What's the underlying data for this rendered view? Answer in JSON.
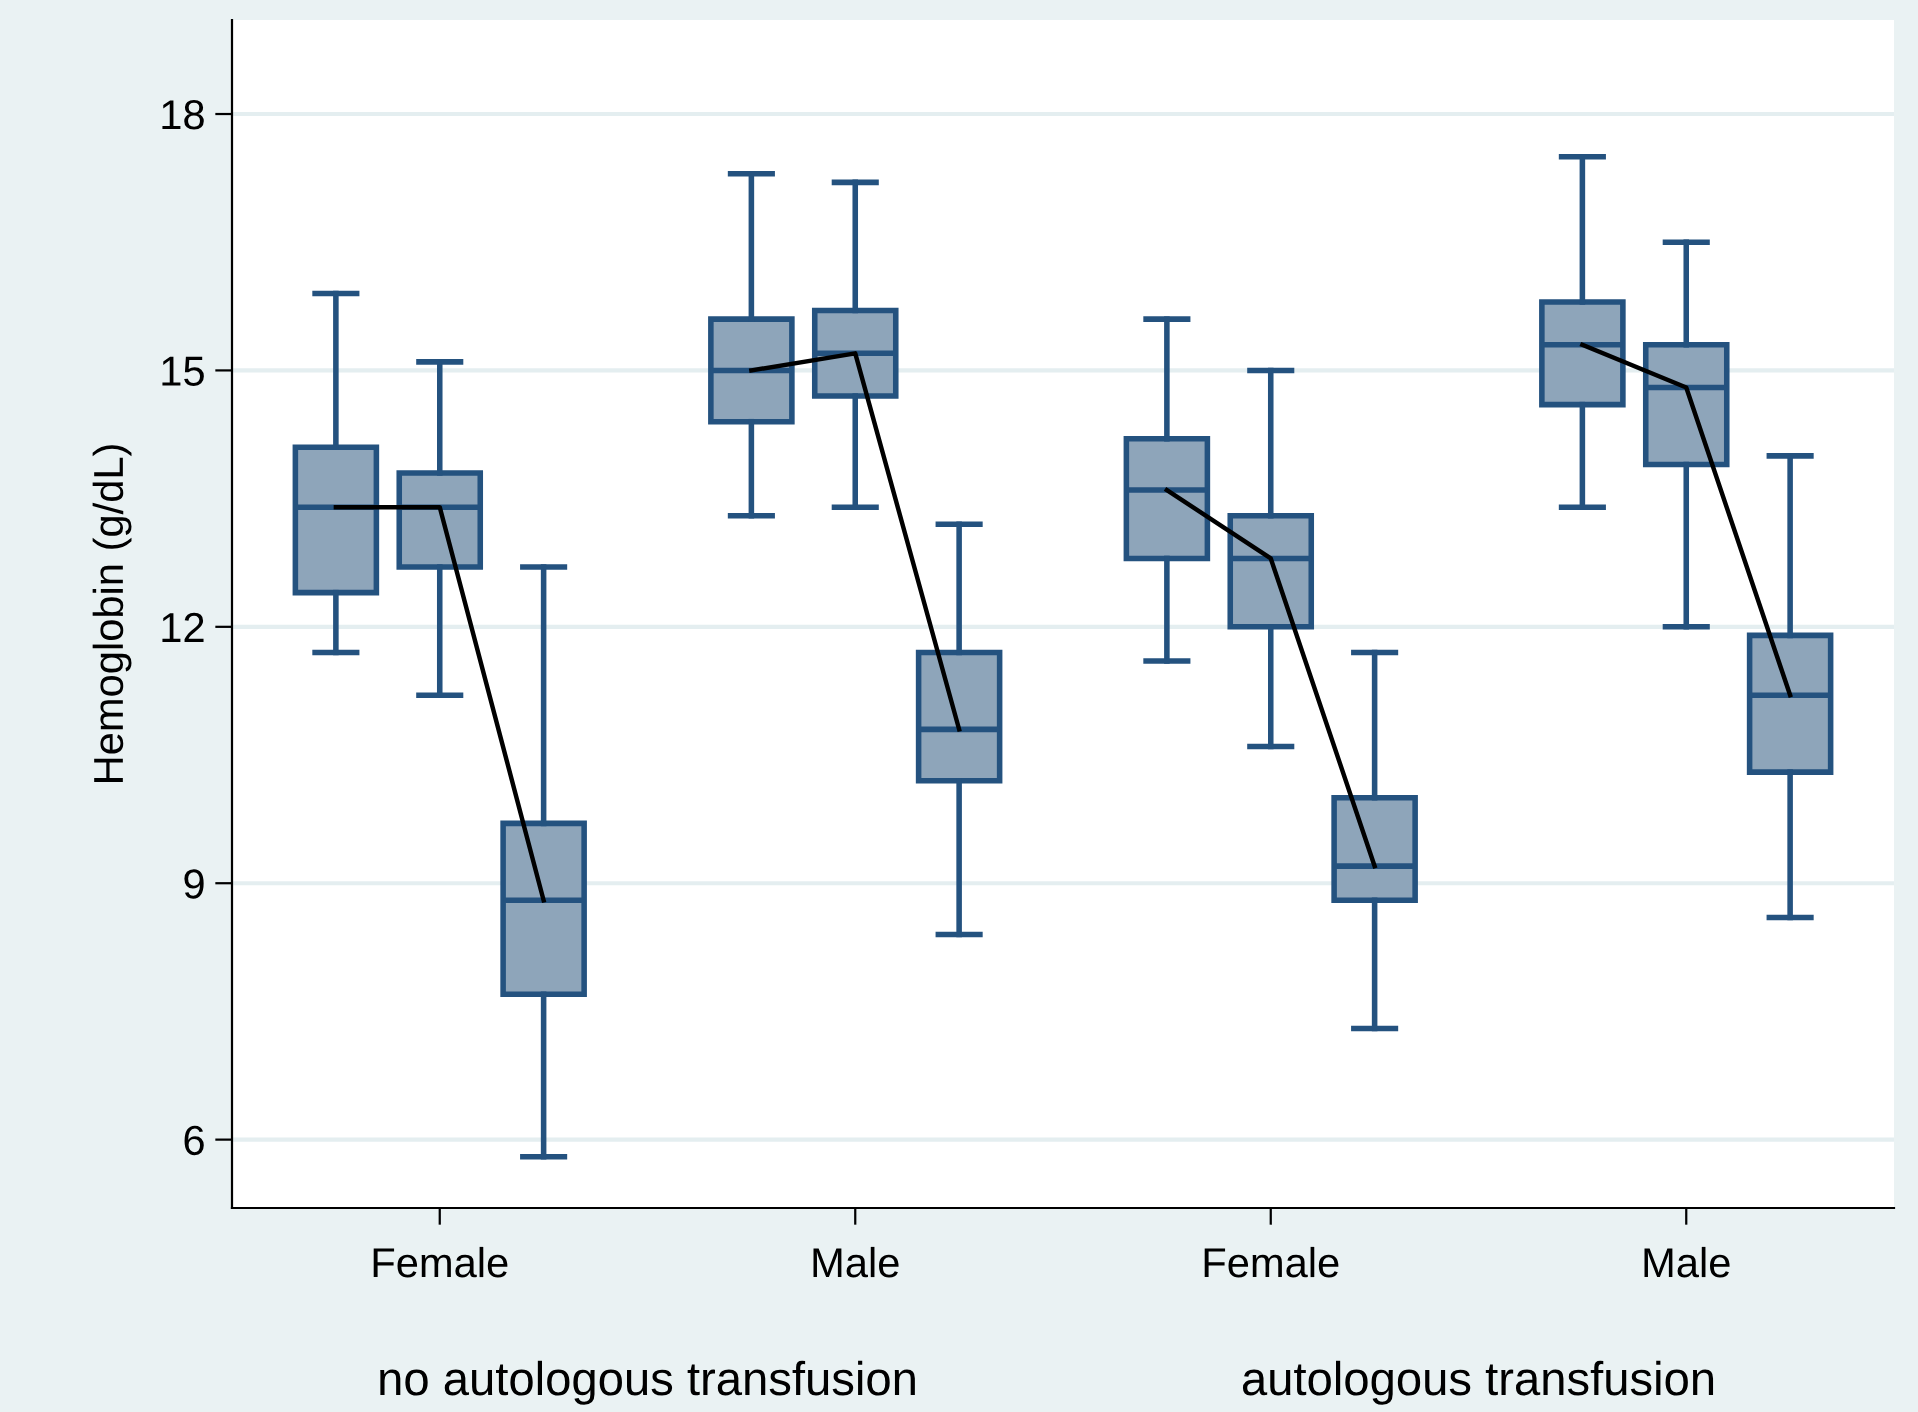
{
  "chart_data": {
    "type": "box",
    "ylabel": "Hemoglobin (g/dL)",
    "categories": [
      null,
      "Female",
      null,
      null,
      null,
      "Male",
      null,
      null,
      null,
      "Female",
      null,
      null,
      null,
      "Male",
      null
    ],
    "annotations": [
      "no autologous transfusion",
      "autologous transfusion"
    ],
    "ylim": [
      5.2,
      19.1
    ],
    "yticks": [
      6,
      9,
      12,
      15,
      18
    ],
    "grid": "y",
    "series": [
      {
        "color": "#8ea5ba",
        "boxes": [
          {
            "low": 11.7,
            "q1": 12.4,
            "median": 13.4,
            "q3": 14.1,
            "high": 15.9
          },
          {
            "low": 11.2,
            "q1": 12.7,
            "median": 13.4,
            "q3": 13.8,
            "high": 15.1
          },
          {
            "low": 5.8,
            "q1": 7.7,
            "median": 8.8,
            "q3": 9.7,
            "high": 12.7
          },
          null,
          {
            "low": 13.3,
            "q1": 14.4,
            "median": 15.0,
            "q3": 15.6,
            "high": 17.3
          },
          {
            "low": 13.4,
            "q1": 14.7,
            "median": 15.2,
            "q3": 15.7,
            "high": 17.2
          },
          {
            "low": 8.4,
            "q1": 10.2,
            "median": 10.8,
            "q3": 11.7,
            "high": 13.2
          },
          null,
          {
            "low": 11.6,
            "q1": 12.8,
            "median": 13.6,
            "q3": 14.2,
            "high": 15.6
          },
          {
            "low": 10.6,
            "q1": 12.0,
            "median": 12.8,
            "q3": 13.3,
            "high": 15.0
          },
          {
            "low": 7.3,
            "q1": 8.8,
            "median": 9.2,
            "q3": 10.0,
            "high": 11.7
          },
          null,
          {
            "low": 13.4,
            "q1": 14.6,
            "median": 15.3,
            "q3": 15.8,
            "high": 17.5
          },
          {
            "low": 12.0,
            "q1": 13.9,
            "median": 14.8,
            "q3": 15.3,
            "high": 16.5
          },
          {
            "low": 8.6,
            "q1": 10.3,
            "median": 11.2,
            "q3": 11.9,
            "high": 14.0
          }
        ]
      },
      {
        "type": "line",
        "color": "#000000",
        "values": [
          13.4,
          13.4,
          8.8,
          null,
          null,
          null,
          null,
          null,
          null,
          null,
          null,
          null,
          null,
          null,
          null
        ]
      },
      {
        "type": "line",
        "color": "#000000",
        "values": [
          null,
          null,
          null,
          null,
          15.0,
          15.2,
          10.8,
          null,
          null,
          null,
          null,
          null,
          null,
          null,
          null
        ]
      },
      {
        "type": "line",
        "color": "#000000",
        "values": [
          null,
          null,
          null,
          null,
          null,
          null,
          null,
          null,
          13.6,
          12.8,
          9.2,
          null,
          null,
          null,
          null
        ]
      },
      {
        "type": "line",
        "color": "#000000",
        "values": [
          null,
          null,
          null,
          null,
          null,
          null,
          null,
          null,
          null,
          null,
          null,
          null,
          15.3,
          14.8,
          11.2
        ]
      }
    ]
  }
}
